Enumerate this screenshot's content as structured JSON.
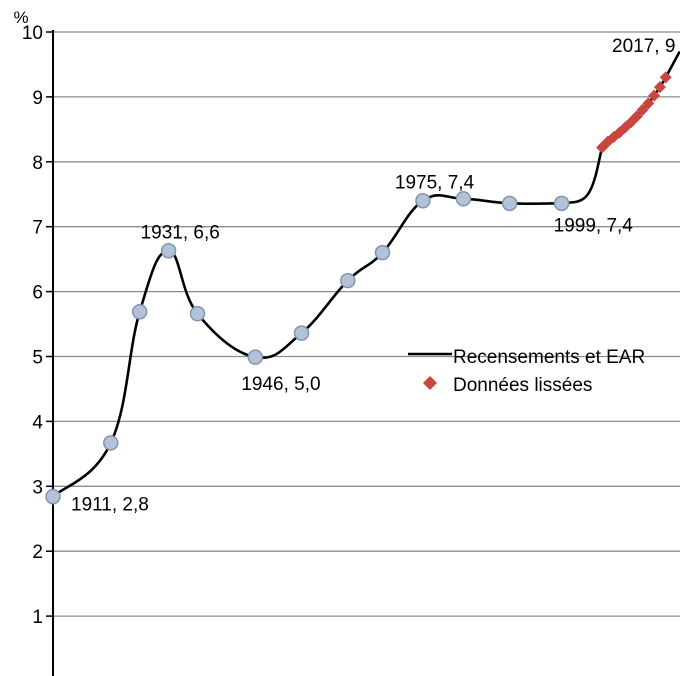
{
  "chart_data": {
    "type": "line",
    "unit_label": "%",
    "ylim": [
      0,
      10
    ],
    "y_ticks": [
      "1",
      "2",
      "3",
      "4",
      "5",
      "6",
      "7",
      "8",
      "9",
      "10"
    ],
    "grid": true,
    "legend_placement": "right",
    "series": [
      {
        "name": "Recensements et EAR",
        "color": "#000000",
        "marker_color": "#b4c2d6",
        "marker_stroke": "#7f95b5",
        "x": [
          1911,
          1921,
          1926,
          1931,
          1936,
          1946,
          1954,
          1962,
          1968,
          1975,
          1982,
          1990,
          1999
        ],
        "values": [
          2.84,
          3.67,
          5.69,
          6.63,
          5.66,
          4.99,
          5.36,
          6.17,
          6.6,
          7.4,
          7.43,
          7.36,
          7.36
        ]
      },
      {
        "name": "Données lissées",
        "color": "#c9453d",
        "x": [
          2006,
          2007,
          2008,
          2009,
          2010,
          2011,
          2012,
          2013,
          2014,
          2015,
          2016,
          2017
        ],
        "values": [
          8.22,
          8.31,
          8.38,
          8.45,
          8.53,
          8.61,
          8.7,
          8.8,
          8.9,
          9.02,
          9.15,
          9.3
        ]
      }
    ],
    "annotations": [
      {
        "label": "1911, 2,8",
        "x": 1911,
        "y": 2.84,
        "pos": "below-right"
      },
      {
        "label": "1931, 6,6",
        "x": 1931,
        "y": 6.63,
        "pos": "above"
      },
      {
        "label": "1946, 5,0",
        "x": 1946,
        "y": 4.99,
        "pos": "below-right"
      },
      {
        "label": "1975, 7,4",
        "x": 1975,
        "y": 7.4,
        "pos": "above"
      },
      {
        "label": "1999, 7,4",
        "x": 1999,
        "y": 7.36,
        "pos": "below-right"
      },
      {
        "label": "2017, 9",
        "x": 2017,
        "y": 9.3,
        "pos": "top"
      }
    ],
    "legend": [
      {
        "label": "Recensements et EAR",
        "symbol": "line"
      },
      {
        "label": "Données lissées",
        "symbol": "diamond"
      }
    ]
  }
}
